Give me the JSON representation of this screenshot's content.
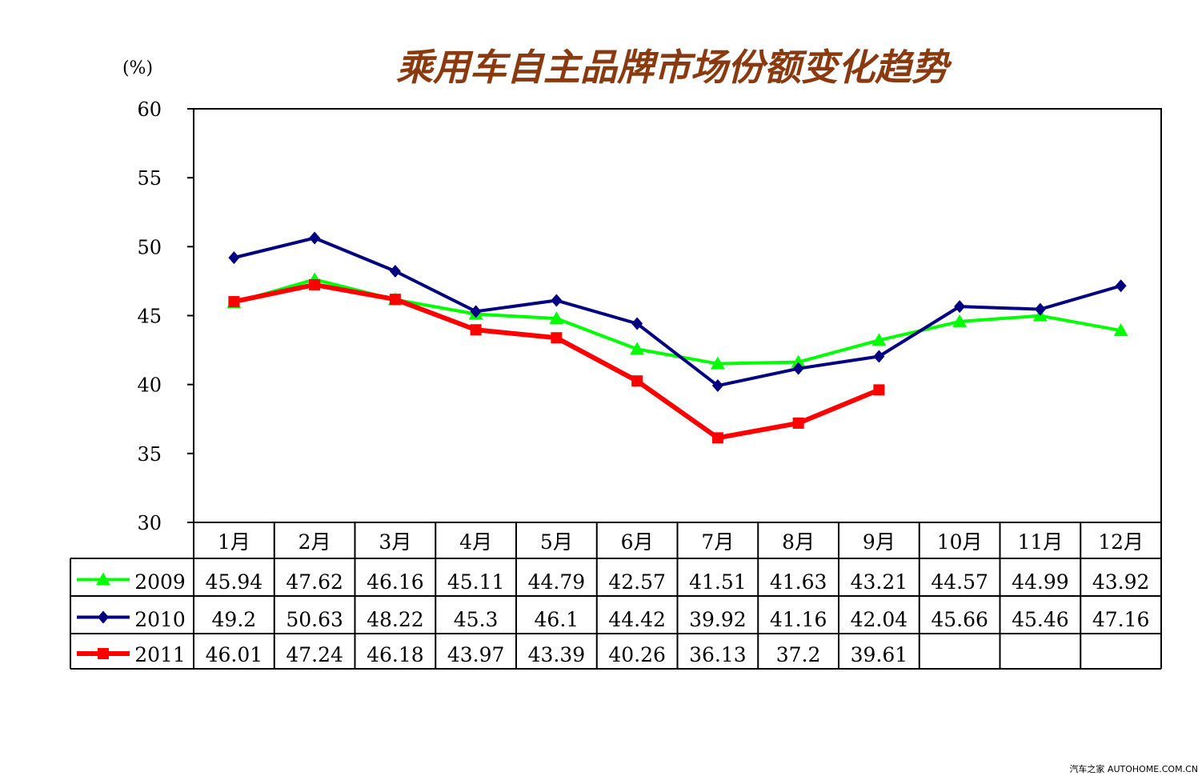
{
  "chart_data": {
    "type": "line",
    "title": "乘用车自主品牌市场份额变化趋势",
    "ylabel": "(%)",
    "ylim": [
      30,
      60
    ],
    "yticks": [
      30,
      35,
      40,
      45,
      50,
      55,
      60
    ],
    "grid": false,
    "legend": "data-table-left",
    "categories": [
      "1月",
      "2月",
      "3月",
      "4月",
      "5月",
      "6月",
      "7月",
      "8月",
      "9月",
      "10月",
      "11月",
      "12月"
    ],
    "series": [
      {
        "name": "2009",
        "color": "#00ff00",
        "marker": "triangle",
        "values": [
          45.94,
          47.62,
          46.16,
          45.11,
          44.79,
          42.57,
          41.51,
          41.63,
          43.21,
          44.57,
          44.99,
          43.92
        ],
        "labels": [
          "45.94",
          "47.62",
          "46.16",
          "45.11",
          "44.79",
          "42.57",
          "41.51",
          "41.63",
          "43.21",
          "44.57",
          "44.99",
          "43.92"
        ]
      },
      {
        "name": "2010",
        "color": "#000080",
        "marker": "diamond",
        "values": [
          49.2,
          50.63,
          48.22,
          45.3,
          46.1,
          44.42,
          39.92,
          41.16,
          42.04,
          45.66,
          45.46,
          47.16
        ],
        "labels": [
          "49.2",
          "50.63",
          "48.22",
          "45.3",
          "46.1",
          "44.42",
          "39.92",
          "41.16",
          "42.04",
          "45.66",
          "45.46",
          "47.16"
        ]
      },
      {
        "name": "2011",
        "color": "#ff0000",
        "marker": "square",
        "values": [
          46.01,
          47.24,
          46.18,
          43.97,
          43.39,
          40.26,
          36.13,
          37.2,
          39.61,
          null,
          null,
          null
        ],
        "labels": [
          "46.01",
          "47.24",
          "46.18",
          "43.97",
          "43.39",
          "40.26",
          "36.13",
          "37.2",
          "39.61",
          "",
          "",
          ""
        ]
      }
    ]
  },
  "watermark": "汽车之家 AUTOHOME.COM.CN"
}
